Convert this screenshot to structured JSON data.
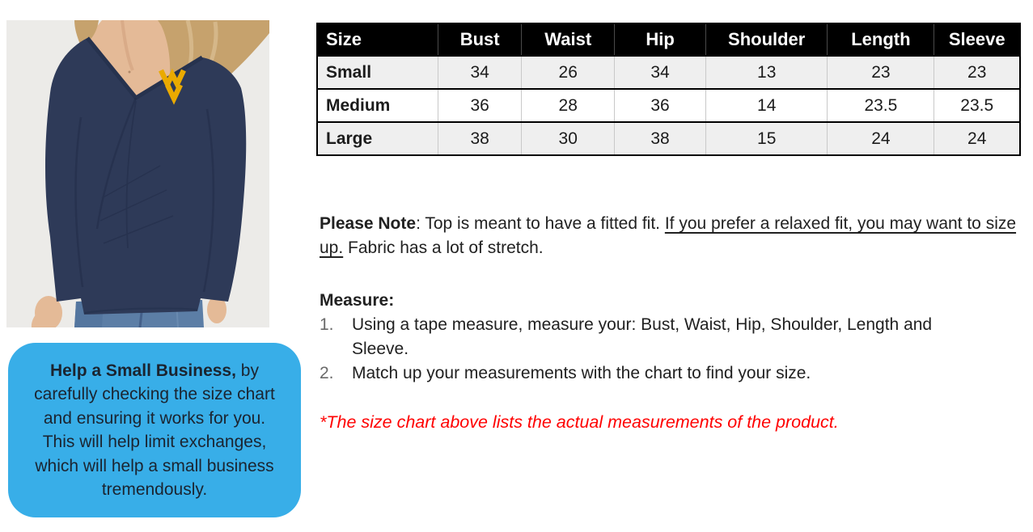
{
  "product_photo": {
    "alt": "Model wearing a navy long-sleeve faux-wrap v-neck top with gold Flying WV West Virginia logo on left chest, with jeans",
    "logo": "flying-wv-logo"
  },
  "size_chart": {
    "columns": [
      "Size",
      "Bust",
      "Waist",
      "Hip",
      "Shoulder",
      "Length",
      "Sleeve"
    ],
    "rows": [
      {
        "cells": [
          "Small",
          "34",
          "26",
          "34",
          "13",
          "23",
          "23"
        ]
      },
      {
        "cells": [
          "Medium",
          "36",
          "28",
          "36",
          "14",
          "23.5",
          "23.5"
        ]
      },
      {
        "cells": [
          "Large",
          "38",
          "30",
          "38",
          "15",
          "24",
          "24"
        ]
      }
    ]
  },
  "chart_data": {
    "type": "table",
    "title": "Size Chart",
    "columns": [
      "Size",
      "Bust",
      "Waist",
      "Hip",
      "Shoulder",
      "Length",
      "Sleeve"
    ],
    "rows": [
      [
        "Small",
        34,
        26,
        34,
        13,
        23,
        23
      ],
      [
        "Medium",
        36,
        28,
        36,
        14,
        23.5,
        23.5
      ],
      [
        "Large",
        38,
        30,
        38,
        15,
        24,
        24
      ]
    ]
  },
  "note": {
    "label": "Please Note",
    "text_pre": ": Top is meant to have a fitted fit. ",
    "underlined": "If you prefer a relaxed fit, you may want to size up.",
    "text_post": "  Fabric has a lot of stretch."
  },
  "measure": {
    "heading": "Measure:",
    "items": [
      {
        "number": "1.",
        "text": "Using a tape measure, measure your: Bust, Waist, Hip, Shoulder, Length and Sleeve."
      },
      {
        "number": "2.",
        "text": "Match up your measurements with the chart to find your size."
      }
    ]
  },
  "footnote": {
    "text": "*The size chart above lists the actual measurements of the product."
  },
  "bubble": {
    "bold": "Help a Small Business,",
    "text": " by carefully checking the size chart and ensuring it works for you. This will help limit exchanges, which will help a small business tremendously."
  },
  "colors": {
    "bubble_bg": "#38aee8",
    "bubble_text": "#1b2430",
    "table_header_bg": "#000000",
    "table_header_text": "#ffffff",
    "table_stripe": "#efefef",
    "table_border": "#000000",
    "body_text": "#212121",
    "footnote_red": "#ff0000",
    "list_number_gray": "#6a6a6a",
    "shirt_navy": "#2e3a58",
    "logo_gold": "#eaaa00",
    "photo_bg": "#ecebe8",
    "denim_blue": "#5c7ea6"
  }
}
